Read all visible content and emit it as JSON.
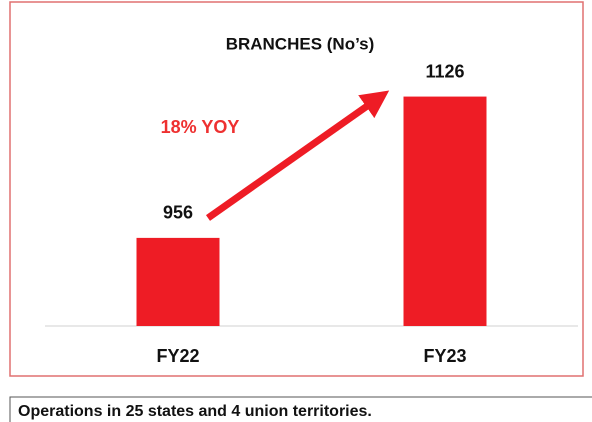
{
  "chart_data": {
    "type": "bar",
    "title": "BRANCHES (No’s)",
    "categories": [
      "FY22",
      "FY23"
    ],
    "values": [
      956,
      1126
    ],
    "color": "#ee1c25",
    "ylim": [
      850,
      1170
    ],
    "annotation": "18% YOY",
    "footnote": "Operations in 25 states and 4 union territories."
  }
}
